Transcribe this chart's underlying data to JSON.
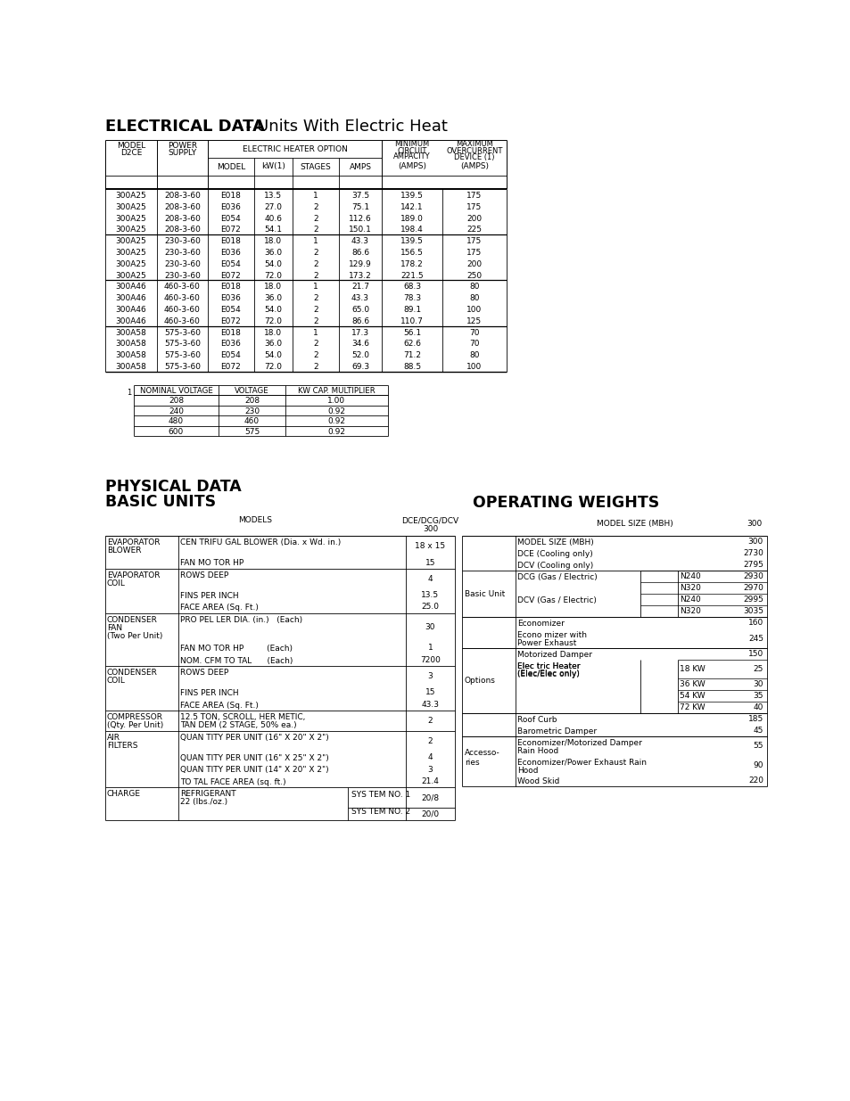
{
  "elec_title_bold": "ELECTRICAL DATA",
  "elec_title_rest": " - Units With Electric Heat",
  "elec_data": [
    [
      "300A25",
      "208-3-60",
      "E018",
      "13.5",
      "1",
      "37.5",
      "139.5",
      "175"
    ],
    [
      "300A25",
      "208-3-60",
      "E036",
      "27.0",
      "2",
      "75.1",
      "142.1",
      "175"
    ],
    [
      "300A25",
      "208-3-60",
      "E054",
      "40.6",
      "2",
      "112.6",
      "189.0",
      "200"
    ],
    [
      "300A25",
      "208-3-60",
      "E072",
      "54.1",
      "2",
      "150.1",
      "198.4",
      "225"
    ],
    [
      "300A25",
      "230-3-60",
      "E018",
      "18.0",
      "1",
      "43.3",
      "139.5",
      "175"
    ],
    [
      "300A25",
      "230-3-60",
      "E036",
      "36.0",
      "2",
      "86.6",
      "156.5",
      "175"
    ],
    [
      "300A25",
      "230-3-60",
      "E054",
      "54.0",
      "2",
      "129.9",
      "178.2",
      "200"
    ],
    [
      "300A25",
      "230-3-60",
      "E072",
      "72.0",
      "2",
      "173.2",
      "221.5",
      "250"
    ],
    [
      "300A46",
      "460-3-60",
      "E018",
      "18.0",
      "1",
      "21.7",
      "68.3",
      "80"
    ],
    [
      "300A46",
      "460-3-60",
      "E036",
      "36.0",
      "2",
      "43.3",
      "78.3",
      "80"
    ],
    [
      "300A46",
      "460-3-60",
      "E054",
      "54.0",
      "2",
      "65.0",
      "89.1",
      "100"
    ],
    [
      "300A46",
      "460-3-60",
      "E072",
      "72.0",
      "2",
      "86.6",
      "110.7",
      "125"
    ],
    [
      "300A58",
      "575-3-60",
      "E018",
      "18.0",
      "1",
      "17.3",
      "56.1",
      "70"
    ],
    [
      "300A58",
      "575-3-60",
      "E036",
      "36.0",
      "2",
      "34.6",
      "62.6",
      "70"
    ],
    [
      "300A58",
      "575-3-60",
      "E054",
      "54.0",
      "2",
      "52.0",
      "71.2",
      "80"
    ],
    [
      "300A58",
      "575-3-60",
      "E072",
      "72.0",
      "2",
      "69.3",
      "88.5",
      "100"
    ]
  ],
  "footnote_data": [
    [
      "208",
      "208",
      "1.00"
    ],
    [
      "240",
      "230",
      "0.92"
    ],
    [
      "480",
      "460",
      "0.92"
    ],
    [
      "600",
      "575",
      "0.92"
    ]
  ],
  "bg_color": "#ffffff",
  "text_color": "#000000"
}
